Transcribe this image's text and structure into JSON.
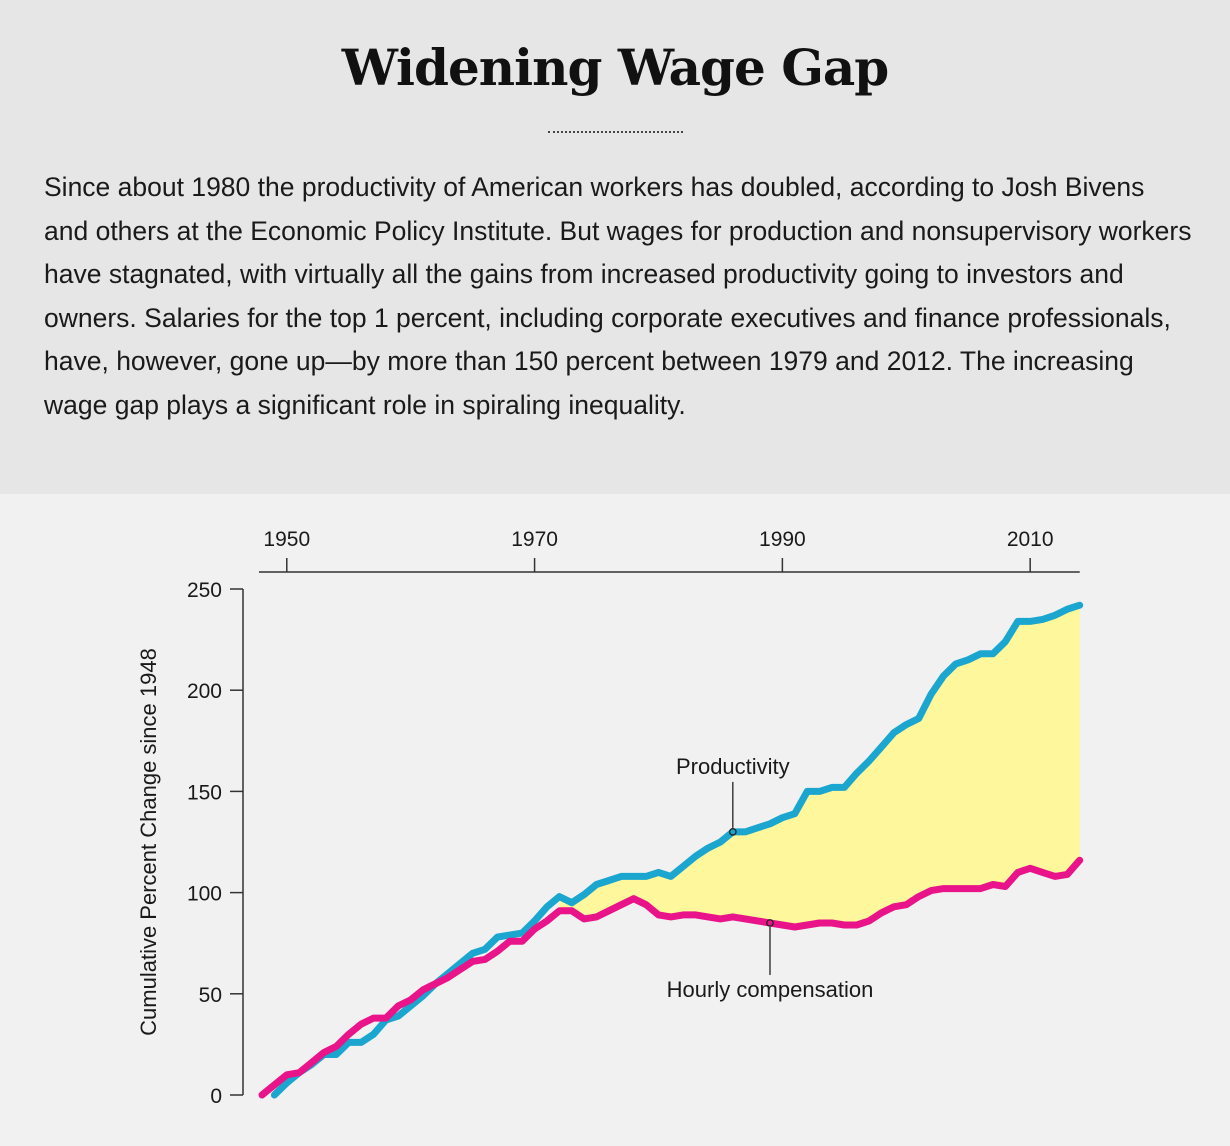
{
  "header": {
    "title": "Widening Wage Gap",
    "intro": "Since about 1980 the productivity of American workers has doubled, according to Josh Bivens and others at the Economic Policy Institute. But wages for production and nonsupervisory workers have stagnated, with virtually all the gains from increased productivity going to investors and owners. Salaries for the top 1 percent, including corporate executives and finance professionals, have, however, gone up—by more than 150 percent between 1979 and 2012. The increasing wage gap plays a significant role in spiraling inequality."
  },
  "chart_data": {
    "type": "line",
    "title": "",
    "xlabel": "",
    "ylabel": "Cumulative Percent Change since 1948",
    "xlim": [
      1948,
      2014
    ],
    "ylim": [
      0,
      250
    ],
    "x_ticks": [
      1950,
      1970,
      1990,
      2010
    ],
    "x_tick_labels": [
      "1950",
      "1970",
      "1990",
      "2010"
    ],
    "y_ticks": [
      0,
      50,
      100,
      150,
      200,
      250
    ],
    "y_tick_labels": [
      "0",
      "50",
      "100",
      "150",
      "200",
      "250"
    ],
    "x_axis_position": "top",
    "grid": false,
    "legend": "none",
    "gap_fill_color": "#fef79b",
    "series": [
      {
        "name": "Productivity",
        "color": "#1aa6cf",
        "points": [
          [
            1949,
            0
          ],
          [
            1950,
            6
          ],
          [
            1951,
            11
          ],
          [
            1952,
            15
          ],
          [
            1953,
            20
          ],
          [
            1954,
            20
          ],
          [
            1955,
            26
          ],
          [
            1956,
            26
          ],
          [
            1957,
            30
          ],
          [
            1958,
            37
          ],
          [
            1959,
            39
          ],
          [
            1960,
            44
          ],
          [
            1961,
            49
          ],
          [
            1962,
            55
          ],
          [
            1963,
            60
          ],
          [
            1964,
            65
          ],
          [
            1965,
            70
          ],
          [
            1966,
            72
          ],
          [
            1967,
            78
          ],
          [
            1968,
            79
          ],
          [
            1969,
            80
          ],
          [
            1970,
            86
          ],
          [
            1971,
            93
          ],
          [
            1972,
            98
          ],
          [
            1973,
            95
          ],
          [
            1974,
            99
          ],
          [
            1975,
            104
          ],
          [
            1976,
            106
          ],
          [
            1977,
            108
          ],
          [
            1978,
            108
          ],
          [
            1979,
            108
          ],
          [
            1980,
            110
          ],
          [
            1981,
            108
          ],
          [
            1982,
            113
          ],
          [
            1983,
            118
          ],
          [
            1984,
            122
          ],
          [
            1985,
            125
          ],
          [
            1986,
            130
          ],
          [
            1987,
            130
          ],
          [
            1988,
            132
          ],
          [
            1989,
            134
          ],
          [
            1990,
            137
          ],
          [
            1991,
            139
          ],
          [
            1992,
            150
          ],
          [
            1993,
            150
          ],
          [
            1994,
            152
          ],
          [
            1995,
            152
          ],
          [
            1996,
            159
          ],
          [
            1997,
            165
          ],
          [
            1998,
            172
          ],
          [
            1999,
            179
          ],
          [
            2000,
            183
          ],
          [
            2001,
            186
          ],
          [
            2002,
            198
          ],
          [
            2003,
            207
          ],
          [
            2004,
            213
          ],
          [
            2005,
            215
          ],
          [
            2006,
            218
          ],
          [
            2007,
            218
          ],
          [
            2008,
            224
          ],
          [
            2009,
            234
          ],
          [
            2010,
            234
          ],
          [
            2011,
            235
          ],
          [
            2012,
            237
          ],
          [
            2013,
            240
          ],
          [
            2014,
            242
          ]
        ]
      },
      {
        "name": "Hourly compensation",
        "color": "#e9138a",
        "points": [
          [
            1948,
            0
          ],
          [
            1949,
            5
          ],
          [
            1950,
            10
          ],
          [
            1951,
            11
          ],
          [
            1952,
            16
          ],
          [
            1953,
            21
          ],
          [
            1954,
            24
          ],
          [
            1955,
            30
          ],
          [
            1956,
            35
          ],
          [
            1957,
            38
          ],
          [
            1958,
            38
          ],
          [
            1959,
            44
          ],
          [
            1960,
            47
          ],
          [
            1961,
            52
          ],
          [
            1962,
            55
          ],
          [
            1963,
            58
          ],
          [
            1964,
            62
          ],
          [
            1965,
            66
          ],
          [
            1966,
            67
          ],
          [
            1967,
            71
          ],
          [
            1968,
            76
          ],
          [
            1969,
            76
          ],
          [
            1970,
            82
          ],
          [
            1971,
            86
          ],
          [
            1972,
            91
          ],
          [
            1973,
            91
          ],
          [
            1974,
            87
          ],
          [
            1975,
            88
          ],
          [
            1976,
            91
          ],
          [
            1977,
            94
          ],
          [
            1978,
            97
          ],
          [
            1979,
            94
          ],
          [
            1980,
            89
          ],
          [
            1981,
            88
          ],
          [
            1982,
            89
          ],
          [
            1983,
            89
          ],
          [
            1984,
            88
          ],
          [
            1985,
            87
          ],
          [
            1986,
            88
          ],
          [
            1987,
            87
          ],
          [
            1988,
            86
          ],
          [
            1989,
            85
          ],
          [
            1990,
            84
          ],
          [
            1991,
            83
          ],
          [
            1992,
            84
          ],
          [
            1993,
            85
          ],
          [
            1994,
            85
          ],
          [
            1995,
            84
          ],
          [
            1996,
            84
          ],
          [
            1997,
            86
          ],
          [
            1998,
            90
          ],
          [
            1999,
            93
          ],
          [
            2000,
            94
          ],
          [
            2001,
            98
          ],
          [
            2002,
            101
          ],
          [
            2003,
            102
          ],
          [
            2004,
            102
          ],
          [
            2005,
            102
          ],
          [
            2006,
            102
          ],
          [
            2007,
            104
          ],
          [
            2008,
            103
          ],
          [
            2009,
            110
          ],
          [
            2010,
            112
          ],
          [
            2011,
            110
          ],
          [
            2012,
            108
          ],
          [
            2013,
            109
          ],
          [
            2014,
            116
          ]
        ]
      }
    ],
    "annotations": [
      {
        "text": "Productivity",
        "series": "Productivity",
        "x": 1986,
        "y": 130,
        "placement": "above"
      },
      {
        "text": "Hourly compensation",
        "series": "Hourly compensation",
        "x": 1989,
        "y": 85,
        "placement": "below"
      }
    ]
  }
}
